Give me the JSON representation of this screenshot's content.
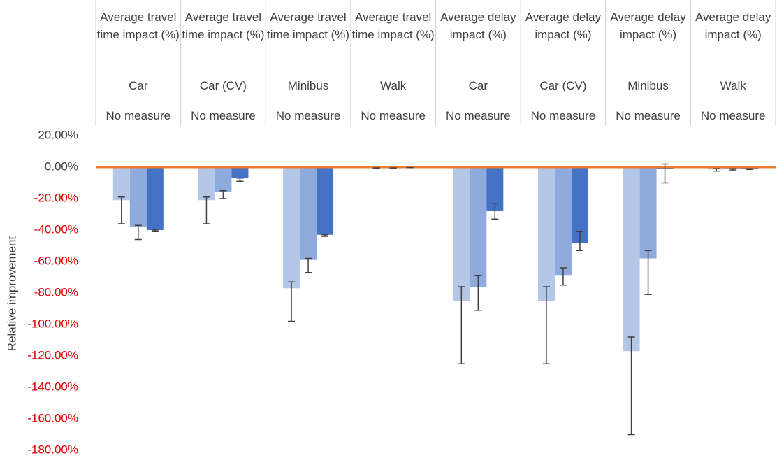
{
  "chart_data": {
    "type": "bar",
    "y_label": "Relative improvement",
    "categories": [
      [
        "Average travel time impact (%)",
        "Car",
        "No measure"
      ],
      [
        "Average travel time impact (%)",
        "Car (CV)",
        "No measure"
      ],
      [
        "Average travel time impact (%)",
        "Minibus",
        "No measure"
      ],
      [
        "Average travel time impact (%)",
        "Walk",
        "No measure"
      ],
      [
        "Average delay impact (%)",
        "Car",
        "No measure"
      ],
      [
        "Average delay impact (%)",
        "Car (CV)",
        "No measure"
      ],
      [
        "Average delay impact (%)",
        "Minibus",
        "No measure"
      ],
      [
        "Average delay impact (%)",
        "Walk",
        "No measure"
      ]
    ],
    "series": [
      {
        "color": "#b4c7e7",
        "values": [
          -21,
          -21,
          -77,
          -0.5,
          -85,
          -85,
          -117,
          -1.5
        ],
        "error_plus": [
          2,
          2,
          4,
          0,
          9,
          9,
          9,
          0.5
        ],
        "error_minus": [
          15,
          15,
          21,
          0,
          40,
          40,
          53,
          1
        ]
      },
      {
        "color": "#8faadc",
        "values": [
          -38,
          -16,
          -59,
          -0.5,
          -76,
          -69,
          -58,
          -1.3
        ],
        "error_plus": [
          1,
          1,
          1,
          0,
          7,
          5,
          5,
          0.3
        ],
        "error_minus": [
          8,
          4,
          8,
          0,
          15,
          6,
          23,
          0.5
        ]
      },
      {
        "color": "#4472c4",
        "values": [
          -40,
          -7,
          -43,
          -0.3,
          -28,
          -48,
          -1,
          -1
        ],
        "error_plus": [
          0,
          0,
          0,
          0,
          5,
          7,
          3,
          0
        ],
        "error_minus": [
          1,
          2,
          1,
          0,
          5,
          5,
          9,
          0.5
        ]
      }
    ],
    "error_color": "#404040",
    "reference_line": {
      "value": 0,
      "color": "#ed7d31"
    },
    "ylim": [
      -180,
      20
    ],
    "yticks": [
      {
        "value": 20,
        "label": "20.00%"
      },
      {
        "value": 0,
        "label": "0.00%"
      },
      {
        "value": -20,
        "label": "-20.00%"
      },
      {
        "value": -40,
        "label": "-40.00%"
      },
      {
        "value": -60,
        "label": "-60.00%"
      },
      {
        "value": -80,
        "label": "-80.00%"
      },
      {
        "value": -100,
        "label": "-100.00%"
      },
      {
        "value": -120,
        "label": "-120.00%"
      },
      {
        "value": -140,
        "label": "-140.00%"
      },
      {
        "value": -160,
        "label": "-160.00%"
      },
      {
        "value": -180,
        "label": "-180.00%"
      }
    ],
    "negative_tick_color": "#e00000",
    "grid": false
  }
}
